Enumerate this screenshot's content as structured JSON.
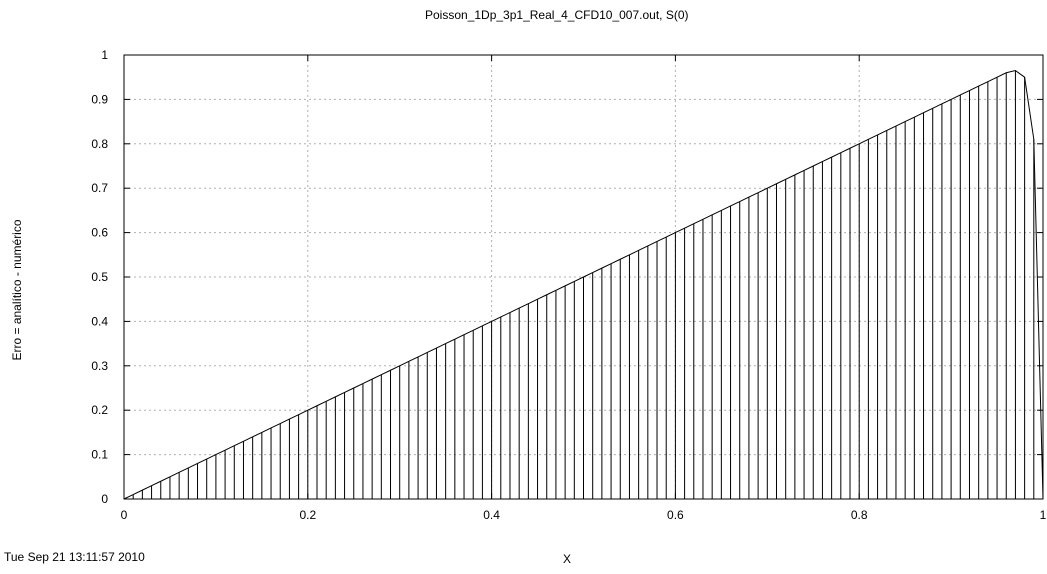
{
  "chart_data": {
    "type": "line",
    "title": "Poisson_1Dp_3p1_Real_4_CFD10_007.out, S(0)",
    "xlabel": "X",
    "ylabel": "Erro = analítico - numérico",
    "timestamp": "Tue Sep 21 13:11:57 2010",
    "xlim": [
      0,
      1
    ],
    "ylim": [
      0,
      1
    ],
    "x_ticks": [
      "0",
      "0.2",
      "0.4",
      "0.6",
      "0.8",
      "1"
    ],
    "y_ticks": [
      "0",
      "0.1",
      "0.2",
      "0.3",
      "0.4",
      "0.5",
      "0.6",
      "0.7",
      "0.8",
      "0.9",
      "1"
    ],
    "grid": true,
    "impulses": true,
    "series": [
      {
        "x": [
          0,
          0.01,
          0.02,
          0.03,
          0.04,
          0.05,
          0.06,
          0.07,
          0.08,
          0.09,
          0.1,
          0.11,
          0.12,
          0.13,
          0.14,
          0.15,
          0.16,
          0.17,
          0.18,
          0.19,
          0.2,
          0.21,
          0.22,
          0.23,
          0.24,
          0.25,
          0.26,
          0.27,
          0.28,
          0.29,
          0.3,
          0.31,
          0.32,
          0.33,
          0.34,
          0.35,
          0.36,
          0.37,
          0.38,
          0.39,
          0.4,
          0.41,
          0.42,
          0.43,
          0.44,
          0.45,
          0.46,
          0.47,
          0.48,
          0.49,
          0.5,
          0.51,
          0.52,
          0.53,
          0.54,
          0.55,
          0.56,
          0.57,
          0.58,
          0.59,
          0.6,
          0.61,
          0.62,
          0.63,
          0.64,
          0.65,
          0.66,
          0.67,
          0.68,
          0.69,
          0.7,
          0.71,
          0.72,
          0.73,
          0.74,
          0.75,
          0.76,
          0.77,
          0.78,
          0.79,
          0.8,
          0.81,
          0.82,
          0.83,
          0.84,
          0.85,
          0.86,
          0.87,
          0.88,
          0.89,
          0.9,
          0.91,
          0.92,
          0.93,
          0.94,
          0.95,
          0.96,
          0.97,
          0.98,
          0.99,
          1.0
        ],
        "y": [
          0,
          0.01,
          0.02,
          0.03,
          0.04,
          0.05,
          0.06,
          0.07,
          0.08,
          0.09,
          0.1,
          0.11,
          0.12,
          0.13,
          0.14,
          0.15,
          0.16,
          0.17,
          0.18,
          0.19,
          0.2,
          0.21,
          0.22,
          0.23,
          0.24,
          0.25,
          0.26,
          0.27,
          0.28,
          0.29,
          0.3,
          0.31,
          0.32,
          0.33,
          0.34,
          0.35,
          0.36,
          0.37,
          0.38,
          0.39,
          0.4,
          0.41,
          0.42,
          0.43,
          0.44,
          0.45,
          0.46,
          0.47,
          0.48,
          0.49,
          0.5,
          0.51,
          0.52,
          0.53,
          0.54,
          0.55,
          0.56,
          0.57,
          0.58,
          0.59,
          0.6,
          0.61,
          0.62,
          0.63,
          0.64,
          0.65,
          0.66,
          0.67,
          0.68,
          0.69,
          0.7,
          0.71,
          0.72,
          0.73,
          0.74,
          0.75,
          0.76,
          0.77,
          0.78,
          0.79,
          0.8,
          0.81,
          0.82,
          0.83,
          0.84,
          0.85,
          0.86,
          0.87,
          0.88,
          0.89,
          0.9,
          0.91,
          0.92,
          0.93,
          0.94,
          0.95,
          0.96,
          0.965,
          0.95,
          0.81,
          0
        ]
      }
    ]
  }
}
